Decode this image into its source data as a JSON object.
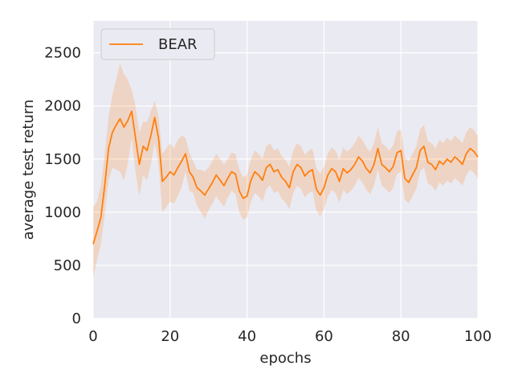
{
  "chart_data": {
    "type": "line",
    "title": "",
    "xlabel": "epochs",
    "ylabel": "average test return",
    "xlim": [
      0,
      100
    ],
    "ylim": [
      0,
      2800
    ],
    "xticks": [
      0,
      20,
      40,
      60,
      80,
      100
    ],
    "xtick_labels": [
      "0",
      "20",
      "40",
      "60",
      "80",
      "100"
    ],
    "yticks": [
      0,
      500,
      1000,
      1500,
      2000,
      2500
    ],
    "ytick_labels": [
      "0",
      "500",
      "1000",
      "1500",
      "2000",
      "2500"
    ],
    "grid": true,
    "legend": {
      "placement": "top-left",
      "entries": [
        "BEAR"
      ]
    },
    "colors": {
      "background": "#eaeaf2",
      "grid": "#ffffff",
      "line": "#ff7f0e",
      "band": "#ff7f0e"
    },
    "series": [
      {
        "name": "BEAR",
        "x": [
          0,
          1,
          2,
          3,
          4,
          5,
          6,
          7,
          8,
          9,
          10,
          11,
          12,
          13,
          14,
          15,
          16,
          17,
          18,
          19,
          20,
          21,
          22,
          23,
          24,
          25,
          26,
          27,
          28,
          29,
          30,
          31,
          32,
          33,
          34,
          35,
          36,
          37,
          38,
          39,
          40,
          41,
          42,
          43,
          44,
          45,
          46,
          47,
          48,
          49,
          50,
          51,
          52,
          53,
          54,
          55,
          56,
          57,
          58,
          59,
          60,
          61,
          62,
          63,
          64,
          65,
          66,
          67,
          68,
          69,
          70,
          71,
          72,
          73,
          74,
          75,
          76,
          77,
          78,
          79,
          80,
          81,
          82,
          83,
          84,
          85,
          86,
          87,
          88,
          89,
          90,
          91,
          92,
          93,
          94,
          95,
          96,
          97,
          98,
          99,
          100
        ],
        "y": [
          700,
          820,
          950,
          1250,
          1600,
          1750,
          1820,
          1880,
          1800,
          1860,
          1950,
          1700,
          1450,
          1620,
          1580,
          1720,
          1890,
          1700,
          1290,
          1330,
          1380,
          1350,
          1420,
          1480,
          1550,
          1380,
          1330,
          1230,
          1200,
          1160,
          1220,
          1280,
          1350,
          1300,
          1250,
          1320,
          1380,
          1360,
          1200,
          1130,
          1150,
          1300,
          1380,
          1350,
          1300,
          1420,
          1450,
          1380,
          1400,
          1330,
          1290,
          1230,
          1380,
          1450,
          1420,
          1340,
          1380,
          1400,
          1220,
          1160,
          1230,
          1350,
          1410,
          1380,
          1290,
          1410,
          1370,
          1400,
          1450,
          1520,
          1480,
          1410,
          1370,
          1450,
          1600,
          1450,
          1420,
          1380,
          1430,
          1560,
          1580,
          1320,
          1280,
          1350,
          1420,
          1580,
          1620,
          1470,
          1450,
          1400,
          1480,
          1450,
          1500,
          1470,
          1520,
          1490,
          1450,
          1550,
          1600,
          1570,
          1520
        ],
        "upper": [
          1050,
          1100,
          1250,
          1550,
          1900,
          2100,
          2250,
          2400,
          2300,
          2250,
          2150,
          2000,
          1750,
          1850,
          1850,
          1950,
          2050,
          1900,
          1550,
          1600,
          1650,
          1600,
          1680,
          1720,
          1700,
          1560,
          1480,
          1400,
          1400,
          1380,
          1420,
          1480,
          1550,
          1500,
          1450,
          1500,
          1560,
          1550,
          1400,
          1330,
          1350,
          1500,
          1580,
          1550,
          1500,
          1620,
          1650,
          1580,
          1600,
          1530,
          1490,
          1430,
          1580,
          1650,
          1620,
          1540,
          1580,
          1600,
          1420,
          1360,
          1430,
          1550,
          1610,
          1580,
          1490,
          1610,
          1570,
          1600,
          1650,
          1720,
          1680,
          1610,
          1570,
          1650,
          1800,
          1650,
          1620,
          1580,
          1630,
          1760,
          1780,
          1520,
          1480,
          1550,
          1620,
          1780,
          1820,
          1670,
          1650,
          1600,
          1680,
          1650,
          1700,
          1670,
          1720,
          1690,
          1650,
          1750,
          1800,
          1770,
          1720
        ],
        "lower": [
          380,
          550,
          700,
          980,
          1300,
          1420,
          1400,
          1380,
          1300,
          1450,
          1700,
          1380,
          1150,
          1350,
          1300,
          1450,
          1650,
          1450,
          1000,
          1050,
          1100,
          1080,
          1150,
          1240,
          1380,
          1200,
          1180,
          1060,
          1000,
          940,
          1020,
          1080,
          1150,
          1100,
          1050,
          1140,
          1200,
          1170,
          1000,
          930,
          950,
          1100,
          1180,
          1150,
          1100,
          1220,
          1250,
          1180,
          1200,
          1130,
          1090,
          1030,
          1180,
          1250,
          1220,
          1140,
          1180,
          1200,
          1020,
          960,
          1030,
          1150,
          1210,
          1180,
          1090,
          1210,
          1170,
          1200,
          1250,
          1320,
          1280,
          1210,
          1170,
          1250,
          1400,
          1250,
          1220,
          1180,
          1230,
          1360,
          1380,
          1120,
          1080,
          1150,
          1220,
          1380,
          1420,
          1270,
          1250,
          1200,
          1280,
          1250,
          1300,
          1270,
          1320,
          1290,
          1250,
          1350,
          1400,
          1370,
          1320
        ]
      }
    ]
  }
}
